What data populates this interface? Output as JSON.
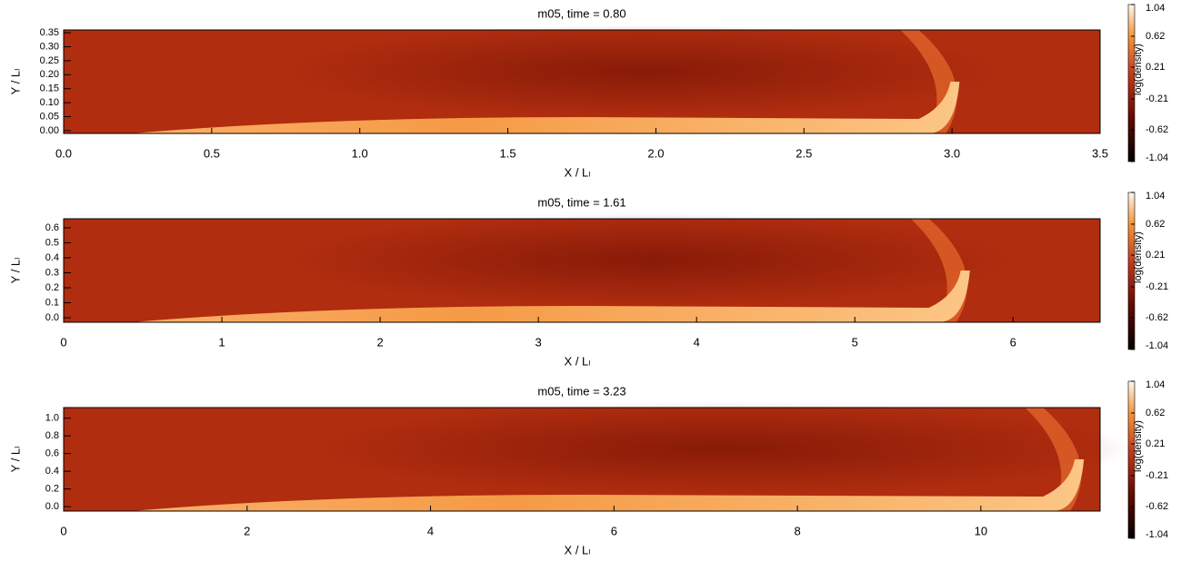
{
  "chart_data": [
    {
      "type": "heatmap",
      "title": "m05, time = 0.80",
      "x_label": "X / Lₗ",
      "y_label": "Y / Lₗ",
      "xlim": [
        0,
        3.5
      ],
      "xticks": [
        {
          "value": 0,
          "label": "0.0"
        },
        0.5,
        {
          "value": 1,
          "label": "1.0"
        },
        1.5,
        {
          "value": 2,
          "label": "2.0"
        },
        2.5,
        {
          "value": 3,
          "label": "3.0"
        },
        3.5
      ],
      "ylim": [
        -0.01,
        0.36
      ],
      "yticks": [
        {
          "value": 0,
          "label": "0.00"
        },
        0.05,
        {
          "value": 0.1,
          "label": "0.10"
        },
        0.15,
        {
          "value": 0.2,
          "label": "0.20"
        },
        0.25,
        {
          "value": 0.3,
          "label": "0.30"
        },
        0.35
      ],
      "colorbar_label": "log(density)",
      "clim": [
        -1.04,
        1.04
      ],
      "cticks": [
        1.04,
        0.62,
        0.21,
        -0.21,
        -0.62,
        -1.04
      ]
    },
    {
      "type": "heatmap",
      "title": "m05, time = 1.61",
      "x_label": "X / Lₗ",
      "y_label": "Y / Lₗ",
      "xlim": [
        0,
        6.55
      ],
      "xticks": [
        0,
        1,
        2,
        3,
        4,
        5,
        6
      ],
      "ylim": [
        -0.03,
        0.66
      ],
      "yticks": [
        {
          "value": 0,
          "label": "0.0"
        },
        0.1,
        0.2,
        0.3,
        0.4,
        0.5,
        0.6
      ],
      "colorbar_label": "log(density)",
      "clim": [
        -1.04,
        1.04
      ],
      "cticks": [
        1.04,
        0.62,
        0.21,
        -0.21,
        -0.62,
        -1.04
      ]
    },
    {
      "type": "heatmap",
      "title": "m05, time = 3.23",
      "x_label": "X / Lₗ",
      "y_label": "Y / Lₗ",
      "xlim": [
        0,
        11.3
      ],
      "xticks": [
        0,
        2,
        4,
        6,
        8,
        10
      ],
      "ylim": [
        -0.05,
        1.12
      ],
      "yticks": [
        {
          "value": 0,
          "label": "0.0"
        },
        0.2,
        0.4,
        0.6,
        0.8,
        {
          "value": 1,
          "label": "1.0"
        }
      ],
      "colorbar_label": "log(density)",
      "clim": [
        -1.04,
        1.04
      ],
      "cticks": [
        1.04,
        0.62,
        0.21,
        -0.21,
        -0.62,
        -1.04
      ]
    }
  ]
}
